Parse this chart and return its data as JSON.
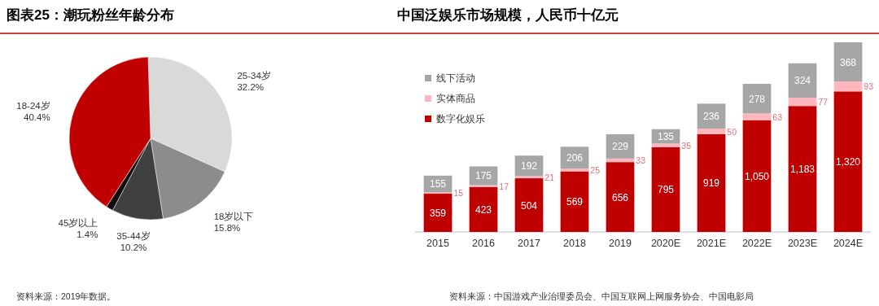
{
  "chart_data": [
    {
      "type": "pie",
      "title": "图表25：潮玩粉丝年龄分布",
      "categories": [
        "25-34岁",
        "18岁以下",
        "35-44岁",
        "45岁以上",
        "18-24岁"
      ],
      "values": [
        32.2,
        15.8,
        10.2,
        1.4,
        40.4
      ],
      "colors": [
        "#d9d9d9",
        "#8c8c8c",
        "#404040",
        "#0d0d0d",
        "#c00000"
      ],
      "value_labels": [
        "32.2%",
        "15.8%",
        "10.2%",
        "1.4%",
        "40.4%"
      ],
      "annotations": [
        "资料来源：2019年数据。"
      ]
    },
    {
      "type": "bar",
      "stacked": true,
      "title": "中国泛娱乐市场规模，人民币十亿元",
      "categories": [
        "2015",
        "2016",
        "2017",
        "2018",
        "2019",
        "2020E",
        "2021E",
        "2022E",
        "2023E",
        "2024E"
      ],
      "legend": "top left",
      "series": [
        {
          "name": "数字化娱乐",
          "color": "#c00000",
          "values": [
            359,
            423,
            504,
            569,
            656,
            795,
            919,
            1050,
            1183,
            1320
          ],
          "value_labels": [
            "359",
            "423",
            "504",
            "569",
            "656",
            "795",
            "919",
            "1,050",
            "1,183",
            "1,320"
          ]
        },
        {
          "name": "实体商品",
          "color": "#ffb6bc",
          "values": [
            15,
            17,
            21,
            25,
            33,
            35,
            50,
            63,
            77,
            93
          ],
          "value_labels": [
            "15",
            "17",
            "21",
            "25",
            "33",
            "35",
            "50",
            "63",
            "77",
            "93"
          ]
        },
        {
          "name": "线下活动",
          "color": "#a6a6a6",
          "values": [
            155,
            175,
            192,
            206,
            229,
            135,
            236,
            278,
            324,
            368
          ],
          "value_labels": [
            "155",
            "175",
            "192",
            "206",
            "229",
            "135",
            "236",
            "278",
            "324",
            "368"
          ]
        }
      ],
      "annotations": [
        "资料来源：中国游戏产业治理委员会、中国互联网上网服务协会、中国电影局"
      ]
    }
  ]
}
